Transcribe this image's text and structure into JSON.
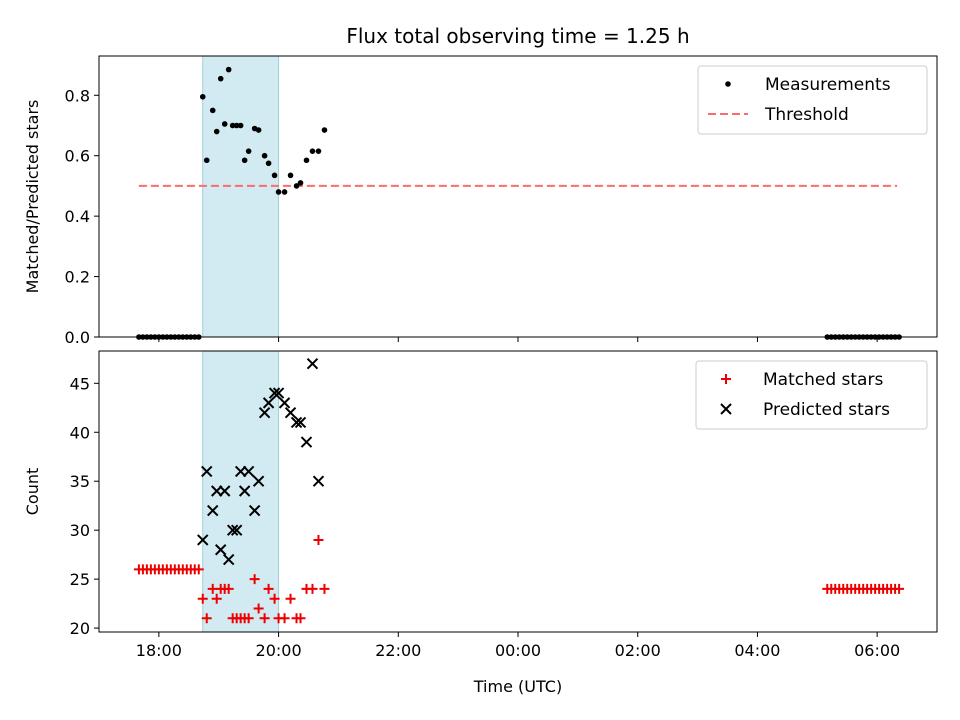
{
  "title": "Flux total observing time = 1.25 h",
  "colors": {
    "measurement": "#000000",
    "threshold": "#ff6b6b",
    "matched": "#ee0000",
    "predicted": "#000000",
    "highlight": "#add8e6"
  },
  "x_axis": {
    "label": "Time (UTC)",
    "range": [
      "17:00",
      "07:00"
    ],
    "ticks": [
      "18:00",
      "20:00",
      "22:00",
      "00:00",
      "02:00",
      "04:00",
      "06:00"
    ],
    "tick_positions": [
      "18:00",
      "20:00",
      "22:00",
      "00:00",
      "02:00",
      "04:00",
      "06:00"
    ]
  },
  "highlight_interval": [
    "18:44",
    "20:00"
  ],
  "chart_data": [
    {
      "type": "scatter",
      "ylabel": "Matched/Predicted stars",
      "ylim": [
        0,
        0.93
      ],
      "yticks": [
        "0.0",
        "0.2",
        "0.4",
        "0.6",
        "0.8"
      ],
      "ytick_values": [
        0,
        0.2,
        0.4,
        0.6,
        0.8
      ],
      "legend": {
        "placement": "top-right",
        "entries": [
          "Measurements",
          "Threshold"
        ]
      },
      "threshold": {
        "name": "Threshold",
        "value": 0.5,
        "x": [
          "17:40",
          "06:20"
        ]
      },
      "series": [
        {
          "name": "Measurements",
          "points": [
            [
              "17:40",
              0
            ],
            [
              "17:44",
              0
            ],
            [
              "17:48",
              0
            ],
            [
              "17:52",
              0
            ],
            [
              "17:56",
              0
            ],
            [
              "18:00",
              0
            ],
            [
              "18:04",
              0
            ],
            [
              "18:08",
              0
            ],
            [
              "18:12",
              0
            ],
            [
              "18:16",
              0
            ],
            [
              "18:20",
              0
            ],
            [
              "18:24",
              0
            ],
            [
              "18:28",
              0
            ],
            [
              "18:32",
              0
            ],
            [
              "18:36",
              0
            ],
            [
              "18:40",
              0
            ],
            [
              "18:44",
              0.795
            ],
            [
              "18:48",
              0.585
            ],
            [
              "18:54",
              0.75
            ],
            [
              "18:58",
              0.68
            ],
            [
              "19:02",
              0.855
            ],
            [
              "19:06",
              0.705
            ],
            [
              "19:10",
              0.885
            ],
            [
              "19:14",
              0.7
            ],
            [
              "19:18",
              0.7
            ],
            [
              "19:22",
              0.7
            ],
            [
              "19:26",
              0.585
            ],
            [
              "19:30",
              0.615
            ],
            [
              "19:36",
              0.69
            ],
            [
              "19:40",
              0.685
            ],
            [
              "19:46",
              0.6
            ],
            [
              "19:50",
              0.575
            ],
            [
              "19:56",
              0.535
            ],
            [
              "20:00",
              0.48
            ],
            [
              "20:06",
              0.48
            ],
            [
              "20:12",
              0.535
            ],
            [
              "20:18",
              0.5
            ],
            [
              "20:22",
              0.51
            ],
            [
              "20:28",
              0.585
            ],
            [
              "20:34",
              0.615
            ],
            [
              "20:40",
              0.615
            ],
            [
              "20:46",
              0.685
            ],
            [
              "05:10",
              0
            ],
            [
              "05:14",
              0
            ],
            [
              "05:18",
              0
            ],
            [
              "05:22",
              0
            ],
            [
              "05:26",
              0
            ],
            [
              "05:30",
              0
            ],
            [
              "05:34",
              0
            ],
            [
              "05:38",
              0
            ],
            [
              "05:42",
              0
            ],
            [
              "05:46",
              0
            ],
            [
              "05:50",
              0
            ],
            [
              "05:54",
              0
            ],
            [
              "05:58",
              0
            ],
            [
              "06:02",
              0
            ],
            [
              "06:06",
              0
            ],
            [
              "06:10",
              0
            ],
            [
              "06:14",
              0
            ],
            [
              "06:18",
              0
            ],
            [
              "06:22",
              0
            ]
          ]
        }
      ]
    },
    {
      "type": "scatter",
      "ylabel": "Count",
      "ylim": [
        19.6,
        48.3
      ],
      "yticks": [
        "20",
        "25",
        "30",
        "35",
        "40",
        "45"
      ],
      "ytick_values": [
        20,
        25,
        30,
        35,
        40,
        45
      ],
      "legend": {
        "placement": "top-right",
        "entries": [
          "Matched stars",
          "Predicted stars"
        ]
      },
      "xlabel": "Time (UTC)",
      "series": [
        {
          "name": "Matched stars",
          "marker": "plus",
          "points": [
            [
              "17:40",
              26
            ],
            [
              "17:44",
              26
            ],
            [
              "17:48",
              26
            ],
            [
              "17:52",
              26
            ],
            [
              "17:56",
              26
            ],
            [
              "18:00",
              26
            ],
            [
              "18:04",
              26
            ],
            [
              "18:08",
              26
            ],
            [
              "18:12",
              26
            ],
            [
              "18:16",
              26
            ],
            [
              "18:20",
              26
            ],
            [
              "18:24",
              26
            ],
            [
              "18:28",
              26
            ],
            [
              "18:32",
              26
            ],
            [
              "18:36",
              26
            ],
            [
              "18:40",
              26
            ],
            [
              "18:44",
              23
            ],
            [
              "18:48",
              21
            ],
            [
              "18:54",
              24
            ],
            [
              "18:58",
              23
            ],
            [
              "19:02",
              24
            ],
            [
              "19:06",
              24
            ],
            [
              "19:10",
              24
            ],
            [
              "19:14",
              21
            ],
            [
              "19:18",
              21
            ],
            [
              "19:22",
              21
            ],
            [
              "19:26",
              21
            ],
            [
              "19:30",
              21
            ],
            [
              "19:36",
              25
            ],
            [
              "19:40",
              22
            ],
            [
              "19:46",
              21
            ],
            [
              "19:50",
              24
            ],
            [
              "19:56",
              23
            ],
            [
              "20:00",
              21
            ],
            [
              "20:06",
              21
            ],
            [
              "20:12",
              23
            ],
            [
              "20:18",
              21
            ],
            [
              "20:22",
              21
            ],
            [
              "20:28",
              24
            ],
            [
              "20:34",
              24
            ],
            [
              "20:40",
              29
            ],
            [
              "20:46",
              24
            ],
            [
              "05:10",
              24
            ],
            [
              "05:14",
              24
            ],
            [
              "05:18",
              24
            ],
            [
              "05:22",
              24
            ],
            [
              "05:26",
              24
            ],
            [
              "05:30",
              24
            ],
            [
              "05:34",
              24
            ],
            [
              "05:38",
              24
            ],
            [
              "05:42",
              24
            ],
            [
              "05:46",
              24
            ],
            [
              "05:50",
              24
            ],
            [
              "05:54",
              24
            ],
            [
              "05:58",
              24
            ],
            [
              "06:02",
              24
            ],
            [
              "06:06",
              24
            ],
            [
              "06:10",
              24
            ],
            [
              "06:14",
              24
            ],
            [
              "06:18",
              24
            ],
            [
              "06:22",
              24
            ]
          ]
        },
        {
          "name": "Predicted stars",
          "marker": "x",
          "points": [
            [
              "18:44",
              29
            ],
            [
              "18:48",
              36
            ],
            [
              "18:54",
              32
            ],
            [
              "18:58",
              34
            ],
            [
              "19:02",
              28
            ],
            [
              "19:06",
              34
            ],
            [
              "19:10",
              27
            ],
            [
              "19:14",
              30
            ],
            [
              "19:18",
              30
            ],
            [
              "19:22",
              36
            ],
            [
              "19:26",
              34
            ],
            [
              "19:30",
              36
            ],
            [
              "19:36",
              32
            ],
            [
              "19:40",
              35
            ],
            [
              "19:46",
              42
            ],
            [
              "19:50",
              43
            ],
            [
              "19:56",
              44
            ],
            [
              "20:00",
              44
            ],
            [
              "20:06",
              43
            ],
            [
              "20:12",
              42
            ],
            [
              "20:18",
              41
            ],
            [
              "20:22",
              41
            ],
            [
              "20:28",
              39
            ],
            [
              "20:34",
              47
            ],
            [
              "20:40",
              35
            ]
          ]
        }
      ]
    }
  ]
}
